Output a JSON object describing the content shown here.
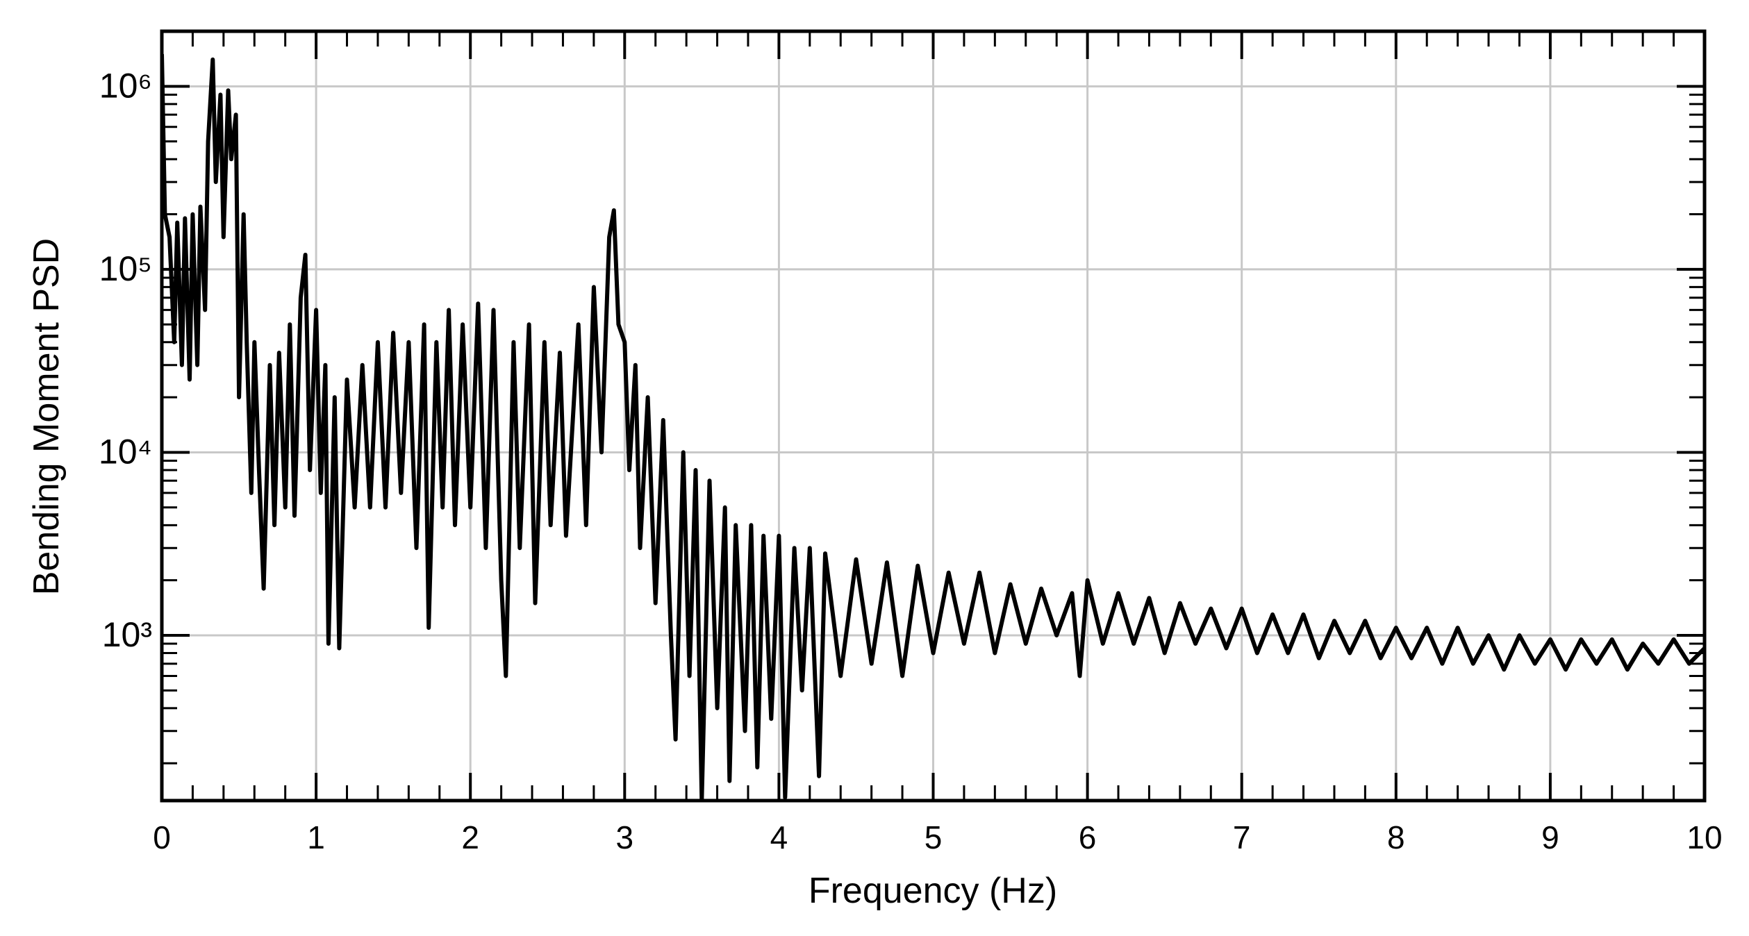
{
  "chart_data": {
    "type": "line",
    "xlabel": "Frequency (Hz)",
    "ylabel": "Bending Moment PSD",
    "log_y": true,
    "grid": true,
    "xlim": [
      0,
      10
    ],
    "xticks": [
      0,
      1,
      2,
      3,
      4,
      5,
      6,
      7,
      8,
      9,
      10
    ],
    "xminorticks": [
      0.2,
      0.4,
      0.6,
      0.8,
      1.2,
      1.4,
      1.6,
      1.8,
      2.2,
      2.4,
      2.6,
      2.8,
      3.2,
      3.4,
      3.6,
      3.8,
      4.2,
      4.4,
      4.6,
      4.8,
      5.2,
      5.4,
      5.6,
      5.8,
      6.2,
      6.4,
      6.6,
      6.8,
      7.2,
      7.4,
      7.6,
      7.8,
      8.2,
      8.4,
      8.6,
      8.8,
      9.2,
      9.4,
      9.6,
      9.8
    ],
    "ylim": [
      125,
      2000000
    ],
    "yticks": [
      {
        "value": 1000,
        "label": "10³"
      },
      {
        "value": 10000,
        "label": "10⁴"
      },
      {
        "value": 100000,
        "label": "10⁵"
      },
      {
        "value": 1000000,
        "label": "10⁶"
      }
    ],
    "yminorticks": [
      200,
      300,
      400,
      500,
      600,
      700,
      800,
      900,
      2000,
      3000,
      4000,
      5000,
      6000,
      7000,
      8000,
      9000,
      20000,
      30000,
      40000,
      50000,
      60000,
      70000,
      80000,
      90000,
      200000,
      300000,
      400000,
      500000,
      600000,
      700000,
      800000,
      900000
    ],
    "series": [
      {
        "color": "#000000",
        "x": [
          0,
          0.02,
          0.05,
          0.08,
          0.1,
          0.13,
          0.15,
          0.18,
          0.2,
          0.23,
          0.25,
          0.28,
          0.3,
          0.33,
          0.35,
          0.38,
          0.4,
          0.43,
          0.45,
          0.48,
          0.5,
          0.53,
          0.55,
          0.58,
          0.6,
          0.63,
          0.66,
          0.7,
          0.73,
          0.76,
          0.8,
          0.83,
          0.86,
          0.9,
          0.93,
          0.96,
          1.0,
          1.03,
          1.06,
          1.08,
          1.12,
          1.15,
          1.2,
          1.25,
          1.3,
          1.35,
          1.4,
          1.45,
          1.5,
          1.55,
          1.6,
          1.65,
          1.7,
          1.73,
          1.78,
          1.82,
          1.86,
          1.9,
          1.95,
          2.0,
          2.05,
          2.1,
          2.15,
          2.2,
          2.23,
          2.28,
          2.32,
          2.38,
          2.42,
          2.48,
          2.52,
          2.58,
          2.62,
          2.7,
          2.75,
          2.8,
          2.85,
          2.9,
          2.93,
          2.96,
          3.0,
          3.03,
          3.07,
          3.1,
          3.15,
          3.2,
          3.25,
          3.3,
          3.33,
          3.38,
          3.42,
          3.46,
          3.5,
          3.55,
          3.6,
          3.65,
          3.68,
          3.72,
          3.78,
          3.82,
          3.86,
          3.9,
          3.95,
          4.0,
          4.04,
          4.1,
          4.15,
          4.2,
          4.26,
          4.3,
          4.4,
          4.5,
          4.6,
          4.7,
          4.8,
          4.9,
          5.0,
          5.1,
          5.2,
          5.3,
          5.4,
          5.5,
          5.6,
          5.7,
          5.8,
          5.9,
          5.95,
          6.0,
          6.1,
          6.2,
          6.3,
          6.4,
          6.5,
          6.6,
          6.7,
          6.8,
          6.9,
          7.0,
          7.1,
          7.2,
          7.3,
          7.4,
          7.5,
          7.6,
          7.7,
          7.8,
          7.9,
          8.0,
          8.1,
          8.2,
          8.3,
          8.4,
          8.5,
          8.6,
          8.7,
          8.8,
          8.9,
          9.0,
          9.1,
          9.2,
          9.3,
          9.4,
          9.5,
          9.6,
          9.7,
          9.8,
          9.9,
          10.0
        ],
        "values": [
          1500000,
          200000,
          150000,
          40000,
          180000,
          30000,
          190000,
          25000,
          200000,
          30000,
          220000,
          60000,
          500000,
          1400000,
          300000,
          900000,
          150000,
          950000,
          400000,
          700000,
          20000,
          200000,
          40000,
          6000,
          40000,
          8000,
          1800,
          30000,
          4000,
          35000,
          5000,
          50000,
          4500,
          70000,
          120000,
          8000,
          60000,
          6000,
          30000,
          900,
          20000,
          850,
          25000,
          5000,
          30000,
          5000,
          40000,
          5000,
          45000,
          6000,
          40000,
          3000,
          50000,
          1100,
          40000,
          5000,
          60000,
          4000,
          50000,
          5000,
          65000,
          3000,
          60000,
          2000,
          600,
          40000,
          3000,
          50000,
          1500,
          40000,
          4000,
          35000,
          3500,
          50000,
          4000,
          80000,
          10000,
          150000,
          210000,
          50000,
          40000,
          8000,
          30000,
          3000,
          20000,
          1500,
          15000,
          1000,
          270,
          10000,
          600,
          8000,
          125,
          7000,
          400,
          5000,
          160,
          4000,
          300,
          4000,
          190,
          3500,
          350,
          3500,
          130,
          3000,
          500,
          3000,
          170,
          2800,
          600,
          2600,
          700,
          2500,
          600,
          2400,
          800,
          2200,
          900,
          2200,
          800,
          1900,
          900,
          1800,
          1000,
          1700,
          600,
          2000,
          900,
          1700,
          900,
          1600,
          800,
          1500,
          900,
          1400,
          850,
          1400,
          800,
          1300,
          800,
          1300,
          750,
          1200,
          800,
          1200,
          750,
          1100,
          750,
          1100,
          700,
          1100,
          700,
          1000,
          650,
          1000,
          700,
          950,
          650,
          950,
          700,
          950,
          650,
          900,
          700,
          950,
          700,
          850
        ]
      }
    ]
  }
}
